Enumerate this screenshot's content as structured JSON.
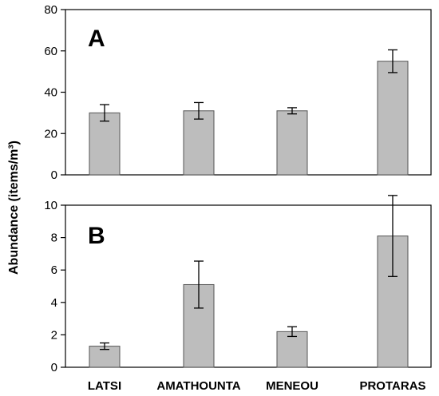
{
  "chart_data": [
    {
      "type": "bar",
      "panel_label": "A",
      "categories": [
        "LATSI",
        "AMATHOUNTA",
        "MENEOU",
        "PROTARAS"
      ],
      "values": [
        30,
        31,
        31,
        55
      ],
      "error": [
        4,
        4,
        1.5,
        5.5
      ],
      "ylim": [
        0,
        80
      ],
      "yticks": [
        0,
        20,
        40,
        60,
        80
      ],
      "grid": false,
      "bar_color": "#bdbdbd",
      "ylabel": "Abundance (items/m³)",
      "xlabel": ""
    },
    {
      "type": "bar",
      "panel_label": "B",
      "categories": [
        "LATSI",
        "AMATHOUNTA",
        "MENEOU",
        "PROTARAS"
      ],
      "values": [
        1.3,
        5.1,
        2.2,
        8.1
      ],
      "error": [
        0.2,
        1.45,
        0.3,
        2.5
      ],
      "ylim": [
        0,
        10
      ],
      "yticks": [
        0,
        2,
        4,
        6,
        8,
        10
      ],
      "grid": false,
      "bar_color": "#bdbdbd",
      "xlabel": ""
    }
  ],
  "ylabel": "Abundance (items/m³)"
}
